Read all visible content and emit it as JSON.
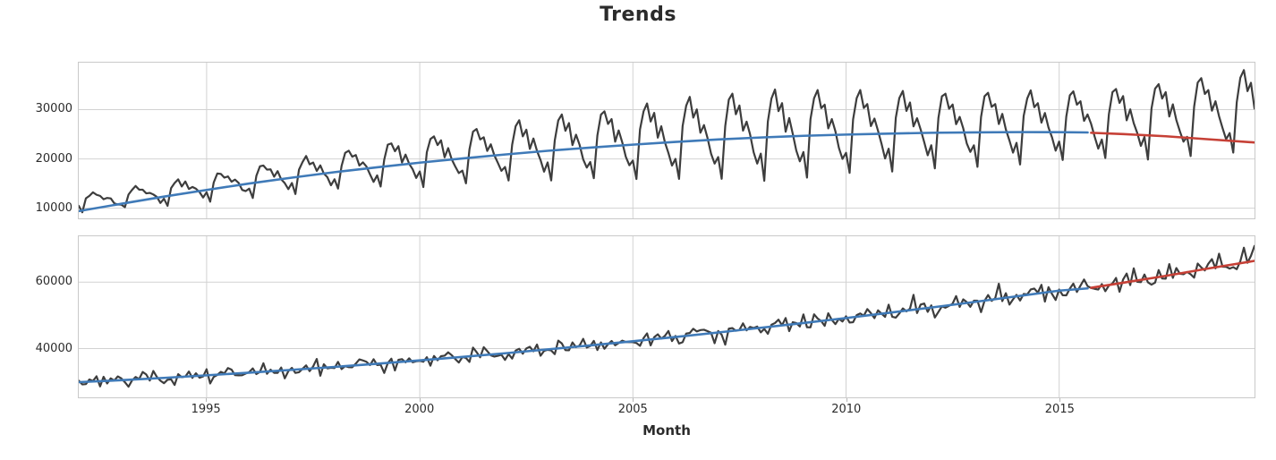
{
  "title": "Trends",
  "x_axis_label": "Month",
  "colors": {
    "observed": "#3d3d3d",
    "trend_fit": "#3f7ab8",
    "trend_forecast": "#c64036",
    "grid": "#d2d2d2",
    "spine": "#c9c9c9",
    "text": "#2b2b2b",
    "background": "#ffffff"
  },
  "chart_data": {
    "type": "line",
    "title": "Trends",
    "xlabel": "Month",
    "frequency": "monthly",
    "grid": true,
    "legend": false,
    "x_domain": [
      1992.0,
      2019.583
    ],
    "x_ticks": [
      1995,
      2000,
      2005,
      2010,
      2015
    ],
    "x_tick_labels": [
      "1995",
      "2000",
      "2005",
      "2010",
      "2015"
    ],
    "forecast_start": 2015.75,
    "subplots": [
      {
        "name": "top-series",
        "ylim": [
          7930,
          39550
        ],
        "y_ticks": [
          10000,
          20000,
          30000
        ],
        "y_tick_labels": [
          "10000",
          "20000",
          "30000"
        ],
        "series": [
          {
            "name": "observed",
            "role": "observed-data",
            "color": "observed",
            "width": 2.2,
            "model": {
              "start": 1992.0,
              "step_per_year": 12,
              "n": 332,
              "center_anchors": [
                [
                  1992,
                  11000
                ],
                [
                  1994,
                  12900
                ],
                [
                  1996,
                  15300
                ],
                [
                  1998,
                  17500
                ],
                [
                  2000,
                  19500
                ],
                [
                  2002,
                  21200
                ],
                [
                  2004,
                  22700
                ],
                [
                  2006,
                  23900
                ],
                [
                  2008,
                  24800
                ],
                [
                  2010,
                  25400
                ],
                [
                  2012,
                  25900
                ],
                [
                  2014,
                  26300
                ],
                [
                  2016,
                  27000
                ],
                [
                  2018,
                  28300
                ],
                [
                  2019.583,
                  29600
                ]
              ],
              "amplitude_anchors": [
                [
                  1992,
                  1700
                ],
                [
                  1995,
                  2600
                ],
                [
                  1998,
                  3900
                ],
                [
                  2001,
                  5400
                ],
                [
                  2004,
                  6900
                ],
                [
                  2006,
                  8100
                ],
                [
                  2008,
                  9000
                ],
                [
                  2010,
                  8500
                ],
                [
                  2012,
                  7600
                ],
                [
                  2016,
                  7100
                ],
                [
                  2019.583,
                  8400
                ]
              ],
              "seasonal_profile": [
                -0.45,
                -1.0,
                0.3,
                0.85,
                1.0,
                0.55,
                0.7,
                0.1,
                0.35,
                0.0,
                -0.35,
                -0.65
              ],
              "noise_tiles": [
                [
                  250,
                  -180,
                  300,
                  -250,
                  120,
                  330,
                  -280,
                  60,
                  -220,
                  280,
                  -120,
                  160,
                  -340,
                  210,
                  40,
                  -260,
                  140
                ]
              ]
            }
          },
          {
            "name": "trend-fit",
            "role": "fitted-trend",
            "color": "trend_fit",
            "width": 2.6,
            "anchors": [
              [
                1992.0,
                9400
              ],
              [
                1993,
                10900
              ],
              [
                1994,
                12350
              ],
              [
                1995,
                13700
              ],
              [
                1996,
                15000
              ],
              [
                1997,
                16200
              ],
              [
                1998,
                17300
              ],
              [
                1999,
                18300
              ],
              [
                2000,
                19250
              ],
              [
                2001,
                20100
              ],
              [
                2002,
                20900
              ],
              [
                2003,
                21650
              ],
              [
                2004,
                22300
              ],
              [
                2005,
                22900
              ],
              [
                2006,
                23450
              ],
              [
                2007,
                23950
              ],
              [
                2008,
                24350
              ],
              [
                2009,
                24700
              ],
              [
                2010,
                24950
              ],
              [
                2011,
                25150
              ],
              [
                2012,
                25300
              ],
              [
                2013,
                25400
              ],
              [
                2014,
                25450
              ],
              [
                2015,
                25430
              ],
              [
                2015.667,
                25380
              ]
            ]
          },
          {
            "name": "trend-forecast",
            "role": "forecast-trend",
            "color": "trend_forecast",
            "width": 2.6,
            "anchors": [
              [
                2015.75,
                25300
              ],
              [
                2016.5,
                25050
              ],
              [
                2017.5,
                24600
              ],
              [
                2018.5,
                24000
              ],
              [
                2019.583,
                23350
              ]
            ]
          }
        ]
      },
      {
        "name": "bottom-series",
        "ylim": [
          25330,
          73790
        ],
        "y_ticks": [
          40000,
          60000
        ],
        "y_tick_labels": [
          "40000",
          "60000"
        ],
        "series": [
          {
            "name": "observed",
            "role": "observed-data",
            "color": "observed",
            "width": 2.2,
            "model": {
              "start": 1992.0,
              "step_per_year": 12,
              "n": 332,
              "center_anchors": [
                [
                  1992.0,
                  29900
                ],
                [
                  1993,
                  30500
                ],
                [
                  1994,
                  31200
                ],
                [
                  1995,
                  31950
                ],
                [
                  1996,
                  32750
                ],
                [
                  1997,
                  33600
                ],
                [
                  1998,
                  34500
                ],
                [
                  1999,
                  35450
                ],
                [
                  2000,
                  36450
                ],
                [
                  2001,
                  37500
                ],
                [
                  2002,
                  38600
                ],
                [
                  2003,
                  39750
                ],
                [
                  2004,
                  40950
                ],
                [
                  2005,
                  42200
                ],
                [
                  2006,
                  43500
                ],
                [
                  2007,
                  44850
                ],
                [
                  2008,
                  46250
                ],
                [
                  2009,
                  47700
                ],
                [
                  2010,
                  49200
                ],
                [
                  2011,
                  50750
                ],
                [
                  2012,
                  52350
                ],
                [
                  2013,
                  54000
                ],
                [
                  2014,
                  55700
                ],
                [
                  2015,
                  57450
                ],
                [
                  2016,
                  58700
                ],
                [
                  2017,
                  60900
                ],
                [
                  2018,
                  63300
                ],
                [
                  2019.583,
                  66900
                ]
              ],
              "amplitude_anchors": [
                [
                  1992,
                  900
                ],
                [
                  2000,
                  1300
                ],
                [
                  2008,
                  1800
                ],
                [
                  2015,
                  2300
                ],
                [
                  2019.583,
                  2900
                ]
              ],
              "seasonal_profile": [
                0.1,
                -0.5,
                -0.9,
                0.2,
                0.6,
                -0.2,
                0.3,
                1.0,
                -0.3,
                0.5,
                -0.1,
                -0.4
              ],
              "noise_tiles": [
                [
                  350,
                  -280,
                  140,
                  480,
                  -420,
                  190,
                  -140,
                  330,
                  -520,
                  240,
                  90,
                  -330,
                  430,
                  -190,
                  280,
                  -470,
                  140,
                  240,
                  -280
                ],
                [
                  0,
                  0,
                  0,
                  0,
                  0,
                  1500,
                  -1700,
                  0,
                  0,
                  0,
                  0,
                  1900,
                  0,
                  0,
                  -1500,
                  0,
                  0,
                  0,
                  2100,
                  0,
                  0,
                  1600,
                  0,
                  0,
                  -1900,
                  0,
                  0,
                  -2000,
                  0,
                  0,
                  0
                ]
              ]
            }
          },
          {
            "name": "trend-fit",
            "role": "fitted-trend",
            "color": "trend_fit",
            "width": 2.6,
            "anchors": [
              [
                1992.0,
                29900
              ],
              [
                1993,
                30500
              ],
              [
                1994,
                31200
              ],
              [
                1995,
                31950
              ],
              [
                1996,
                32750
              ],
              [
                1997,
                33600
              ],
              [
                1998,
                34500
              ],
              [
                1999,
                35450
              ],
              [
                2000,
                36450
              ],
              [
                2001,
                37500
              ],
              [
                2002,
                38600
              ],
              [
                2003,
                39750
              ],
              [
                2004,
                40950
              ],
              [
                2005,
                42200
              ],
              [
                2006,
                43500
              ],
              [
                2007,
                44850
              ],
              [
                2008,
                46250
              ],
              [
                2009,
                47700
              ],
              [
                2010,
                49200
              ],
              [
                2011,
                50750
              ],
              [
                2012,
                52350
              ],
              [
                2013,
                54000
              ],
              [
                2014,
                55700
              ],
              [
                2015,
                57450
              ],
              [
                2015.667,
                58100
              ]
            ]
          },
          {
            "name": "trend-forecast",
            "role": "forecast-trend",
            "color": "trend_forecast",
            "width": 2.6,
            "anchors": [
              [
                2015.75,
                58300
              ],
              [
                2016.5,
                59800
              ],
              [
                2017.5,
                61900
              ],
              [
                2018.5,
                64100
              ],
              [
                2019.583,
                66400
              ]
            ]
          }
        ]
      }
    ]
  }
}
